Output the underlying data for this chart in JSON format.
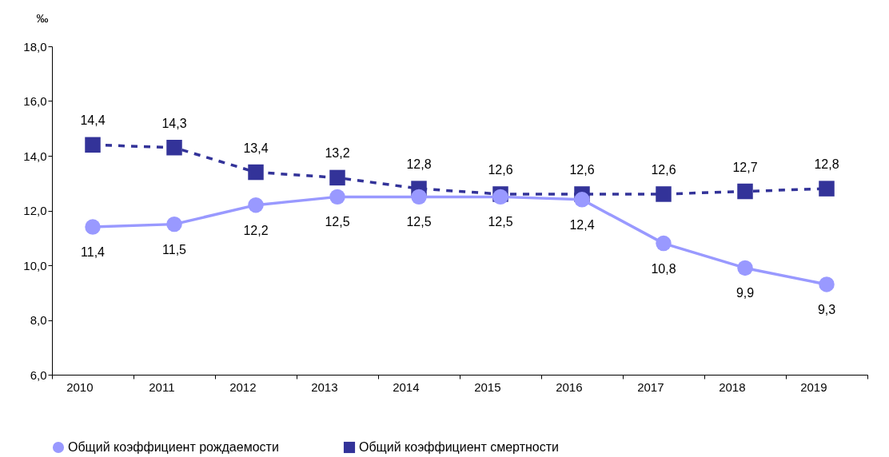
{
  "chart_data": {
    "type": "line",
    "ylabel": "‰",
    "categories": [
      "2010",
      "2011",
      "2012",
      "2013",
      "2014",
      "2015",
      "2016",
      "2017",
      "2018",
      "2019"
    ],
    "ylim": [
      6,
      18
    ],
    "yticks": [
      {
        "value": 6,
        "label": "6,0"
      },
      {
        "value": 8,
        "label": "8,0"
      },
      {
        "value": 10,
        "label": "10,0"
      },
      {
        "value": 12,
        "label": "12,0"
      },
      {
        "value": 14,
        "label": "14,0"
      },
      {
        "value": 16,
        "label": "16,0"
      },
      {
        "value": 18,
        "label": "18,0"
      }
    ],
    "grid": false,
    "legend": "bottom",
    "series": [
      {
        "name": "Общий коэффициент рождаемости",
        "color": "#9999ff",
        "marker": "circle",
        "line_style": "solid",
        "values": [
          11.4,
          11.5,
          12.2,
          12.5,
          12.5,
          12.5,
          12.4,
          10.8,
          9.9,
          9.3
        ],
        "value_labels": [
          "11,4",
          "11,5",
          "12,2",
          "12,5",
          "12,5",
          "12,5",
          "12,4",
          "10,8",
          "9,9",
          "9,3"
        ]
      },
      {
        "name": "Общий коэффициент смертности",
        "color": "#333399",
        "marker": "square",
        "line_style": "dashed",
        "values": [
          14.4,
          14.3,
          13.4,
          13.2,
          12.8,
          12.6,
          12.6,
          12.6,
          12.7,
          12.8
        ],
        "value_labels": [
          "14,4",
          "14,3",
          "13,4",
          "13,2",
          "12,8",
          "12,6",
          "12,6",
          "12,6",
          "12,7",
          "12,8"
        ]
      }
    ]
  }
}
